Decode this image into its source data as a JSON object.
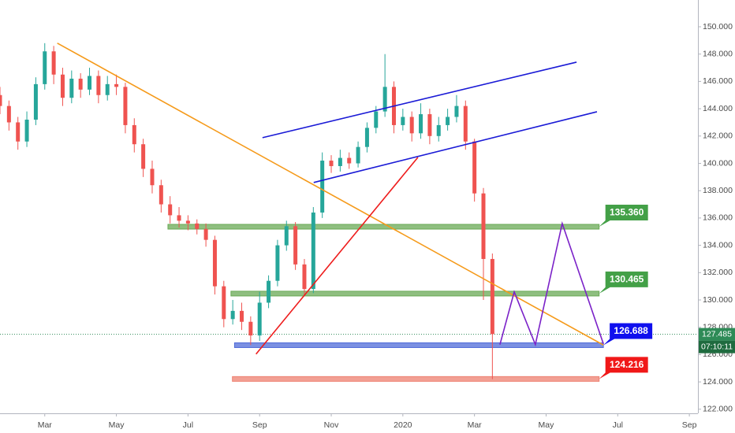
{
  "chart_data": {
    "type": "candlestick",
    "up_color": "#26a69a",
    "down_color": "#ef5350",
    "xlim": [
      -1.25,
      18.24
    ],
    "xticks": [
      {
        "value": 0,
        "label": "Mar"
      },
      {
        "value": 2,
        "label": "May"
      },
      {
        "value": 4,
        "label": "Jul"
      },
      {
        "value": 6,
        "label": "Sep"
      },
      {
        "value": 8,
        "label": "Nov"
      },
      {
        "value": 10,
        "label": "2020"
      },
      {
        "value": 12,
        "label": "Mar"
      },
      {
        "value": 14,
        "label": "May"
      },
      {
        "value": 16,
        "label": "Jul"
      },
      {
        "value": 18,
        "label": "Sep"
      }
    ],
    "ylim": [
      121.7,
      151.96
    ],
    "yticks": [
      {
        "value": 122,
        "label": "122.000"
      },
      {
        "value": 124,
        "label": "124.000"
      },
      {
        "value": 126,
        "label": "126.000"
      },
      {
        "value": 128,
        "label": "128.000"
      },
      {
        "value": 130,
        "label": "130.000"
      },
      {
        "value": 132,
        "label": "132.000"
      },
      {
        "value": 134,
        "label": "134.000"
      },
      {
        "value": 136,
        "label": "136.000"
      },
      {
        "value": 138,
        "label": "138.000"
      },
      {
        "value": 140,
        "label": "140.000"
      },
      {
        "value": 142,
        "label": "142.000"
      },
      {
        "value": 144,
        "label": "144.000"
      },
      {
        "value": 146,
        "label": "146.000"
      },
      {
        "value": 148,
        "label": "148.000"
      },
      {
        "value": 150,
        "label": "150.000"
      }
    ],
    "x": [
      -1.25,
      -1,
      -0.75,
      -0.5,
      -0.25,
      0,
      0.25,
      0.5,
      0.75,
      1,
      1.25,
      1.5,
      1.75,
      2,
      2.25,
      2.5,
      2.75,
      3,
      3.25,
      3.5,
      3.75,
      4,
      4.25,
      4.5,
      4.75,
      5,
      5.25,
      5.5,
      5.75,
      6,
      6.25,
      6.5,
      6.75,
      7,
      7.25,
      7.5,
      7.75,
      8,
      8.25,
      8.5,
      8.75,
      9,
      9.25,
      9.5,
      9.75,
      10,
      10.25,
      10.5,
      10.75,
      11,
      11.25,
      11.5,
      11.75,
      12,
      12.25,
      12.5
    ],
    "open": [
      145.0,
      144.2,
      143.0,
      141.6,
      143.2,
      145.8,
      148.2,
      146.5,
      144.8,
      146.2,
      145.4,
      146.4,
      145.0,
      145.8,
      145.6,
      142.8,
      141.4,
      139.6,
      138.4,
      137.0,
      136.2,
      135.8,
      135.6,
      135.2,
      134.4,
      131.0,
      128.6,
      129.2,
      128.4,
      127.4,
      129.8,
      131.4,
      134.0,
      135.4,
      132.6,
      130.8,
      136.4,
      140.2,
      139.8,
      140.4,
      140.0,
      141.2,
      142.6,
      143.8,
      145.6,
      142.8,
      143.4,
      142.2,
      143.6,
      142.0,
      142.8,
      143.4,
      144.2,
      141.6,
      137.8,
      133.0
    ],
    "high": [
      145.6,
      144.6,
      143.4,
      143.8,
      146.3,
      148.8,
      148.6,
      147.0,
      146.8,
      146.6,
      147.0,
      146.8,
      146.4,
      146.5,
      145.9,
      143.3,
      141.8,
      140.2,
      138.8,
      137.6,
      136.8,
      136.2,
      135.9,
      135.6,
      134.7,
      131.4,
      130.0,
      129.8,
      128.8,
      130.6,
      131.8,
      134.4,
      135.8,
      135.7,
      133.0,
      136.8,
      140.8,
      140.6,
      141.0,
      140.8,
      141.6,
      143.0,
      144.2,
      148.0,
      146.0,
      144.0,
      143.8,
      144.4,
      144.0,
      143.4,
      144.0,
      145.0,
      144.6,
      141.8,
      138.2,
      133.4
    ],
    "low": [
      143.6,
      142.4,
      141.0,
      141.2,
      142.8,
      145.4,
      145.8,
      144.2,
      144.4,
      144.8,
      145.0,
      144.4,
      144.6,
      145.0,
      142.2,
      140.8,
      139.0,
      137.8,
      136.4,
      135.6,
      135.3,
      135.1,
      134.8,
      133.9,
      130.4,
      128.0,
      128.2,
      127.8,
      126.7,
      127.0,
      129.4,
      131.0,
      133.6,
      132.2,
      130.4,
      130.5,
      136.0,
      139.3,
      139.4,
      139.6,
      139.7,
      140.8,
      142.2,
      143.4,
      142.2,
      142.4,
      141.6,
      141.8,
      141.4,
      141.6,
      142.4,
      143.0,
      141.0,
      137.2,
      130.0,
      124.2
    ],
    "close": [
      144.2,
      143.0,
      141.6,
      143.2,
      145.8,
      148.2,
      146.5,
      144.8,
      146.2,
      145.4,
      146.4,
      145.0,
      145.8,
      145.6,
      142.8,
      141.4,
      139.6,
      138.4,
      137.0,
      136.2,
      135.8,
      135.6,
      135.2,
      134.4,
      131.0,
      128.6,
      129.2,
      128.4,
      127.4,
      129.8,
      131.4,
      134.0,
      135.4,
      132.6,
      130.8,
      136.4,
      140.2,
      139.8,
      140.4,
      140.0,
      141.2,
      142.6,
      143.8,
      145.6,
      142.8,
      143.4,
      142.2,
      143.6,
      142.0,
      142.8,
      143.4,
      144.2,
      141.6,
      137.8,
      133.0,
      127.5
    ],
    "zones": [
      {
        "value": 135.36,
        "label": "135.360",
        "x": [
          3.44,
          15.48
        ],
        "color": "#6aaa55",
        "label_color": "#43a047"
      },
      {
        "value": 130.465,
        "label": "130.465",
        "x": [
          5.2,
          15.48
        ],
        "color": "#6aaa55",
        "label_color": "#43a047"
      },
      {
        "value": 126.688,
        "label": "126.688",
        "x": [
          5.3,
          15.6
        ],
        "color": "#4f6bd8",
        "label_color": "#1010ee"
      },
      {
        "value": 124.216,
        "label": "124.216",
        "x": [
          5.24,
          15.48
        ],
        "color": "#ee8070",
        "label_color": "#f01818"
      }
    ],
    "drawings": [
      {
        "color": "#f59a1a",
        "points": [
          [
            0.35,
            148.8
          ],
          [
            15.6,
            126.7
          ]
        ]
      },
      {
        "color": "#1a1ad6",
        "points": [
          [
            6.08,
            141.88
          ],
          [
            14.85,
            147.41
          ]
        ]
      },
      {
        "color": "#1a1ad6",
        "points": [
          [
            7.51,
            138.6
          ],
          [
            15.42,
            143.78
          ]
        ]
      },
      {
        "color": "#ee1c1c",
        "points": [
          [
            5.9,
            126.04
          ],
          [
            10.42,
            140.44
          ]
        ]
      },
      {
        "color": "#7b22c8",
        "points": [
          [
            12.71,
            126.73
          ],
          [
            13.11,
            130.59
          ],
          [
            13.7,
            126.73
          ],
          [
            14.45,
            135.6
          ],
          [
            15.6,
            126.79
          ]
        ]
      }
    ],
    "last_price": {
      "value": 127.485,
      "label": "127.485",
      "color": "#2e8b57"
    },
    "countdown": "07:10:11"
  }
}
